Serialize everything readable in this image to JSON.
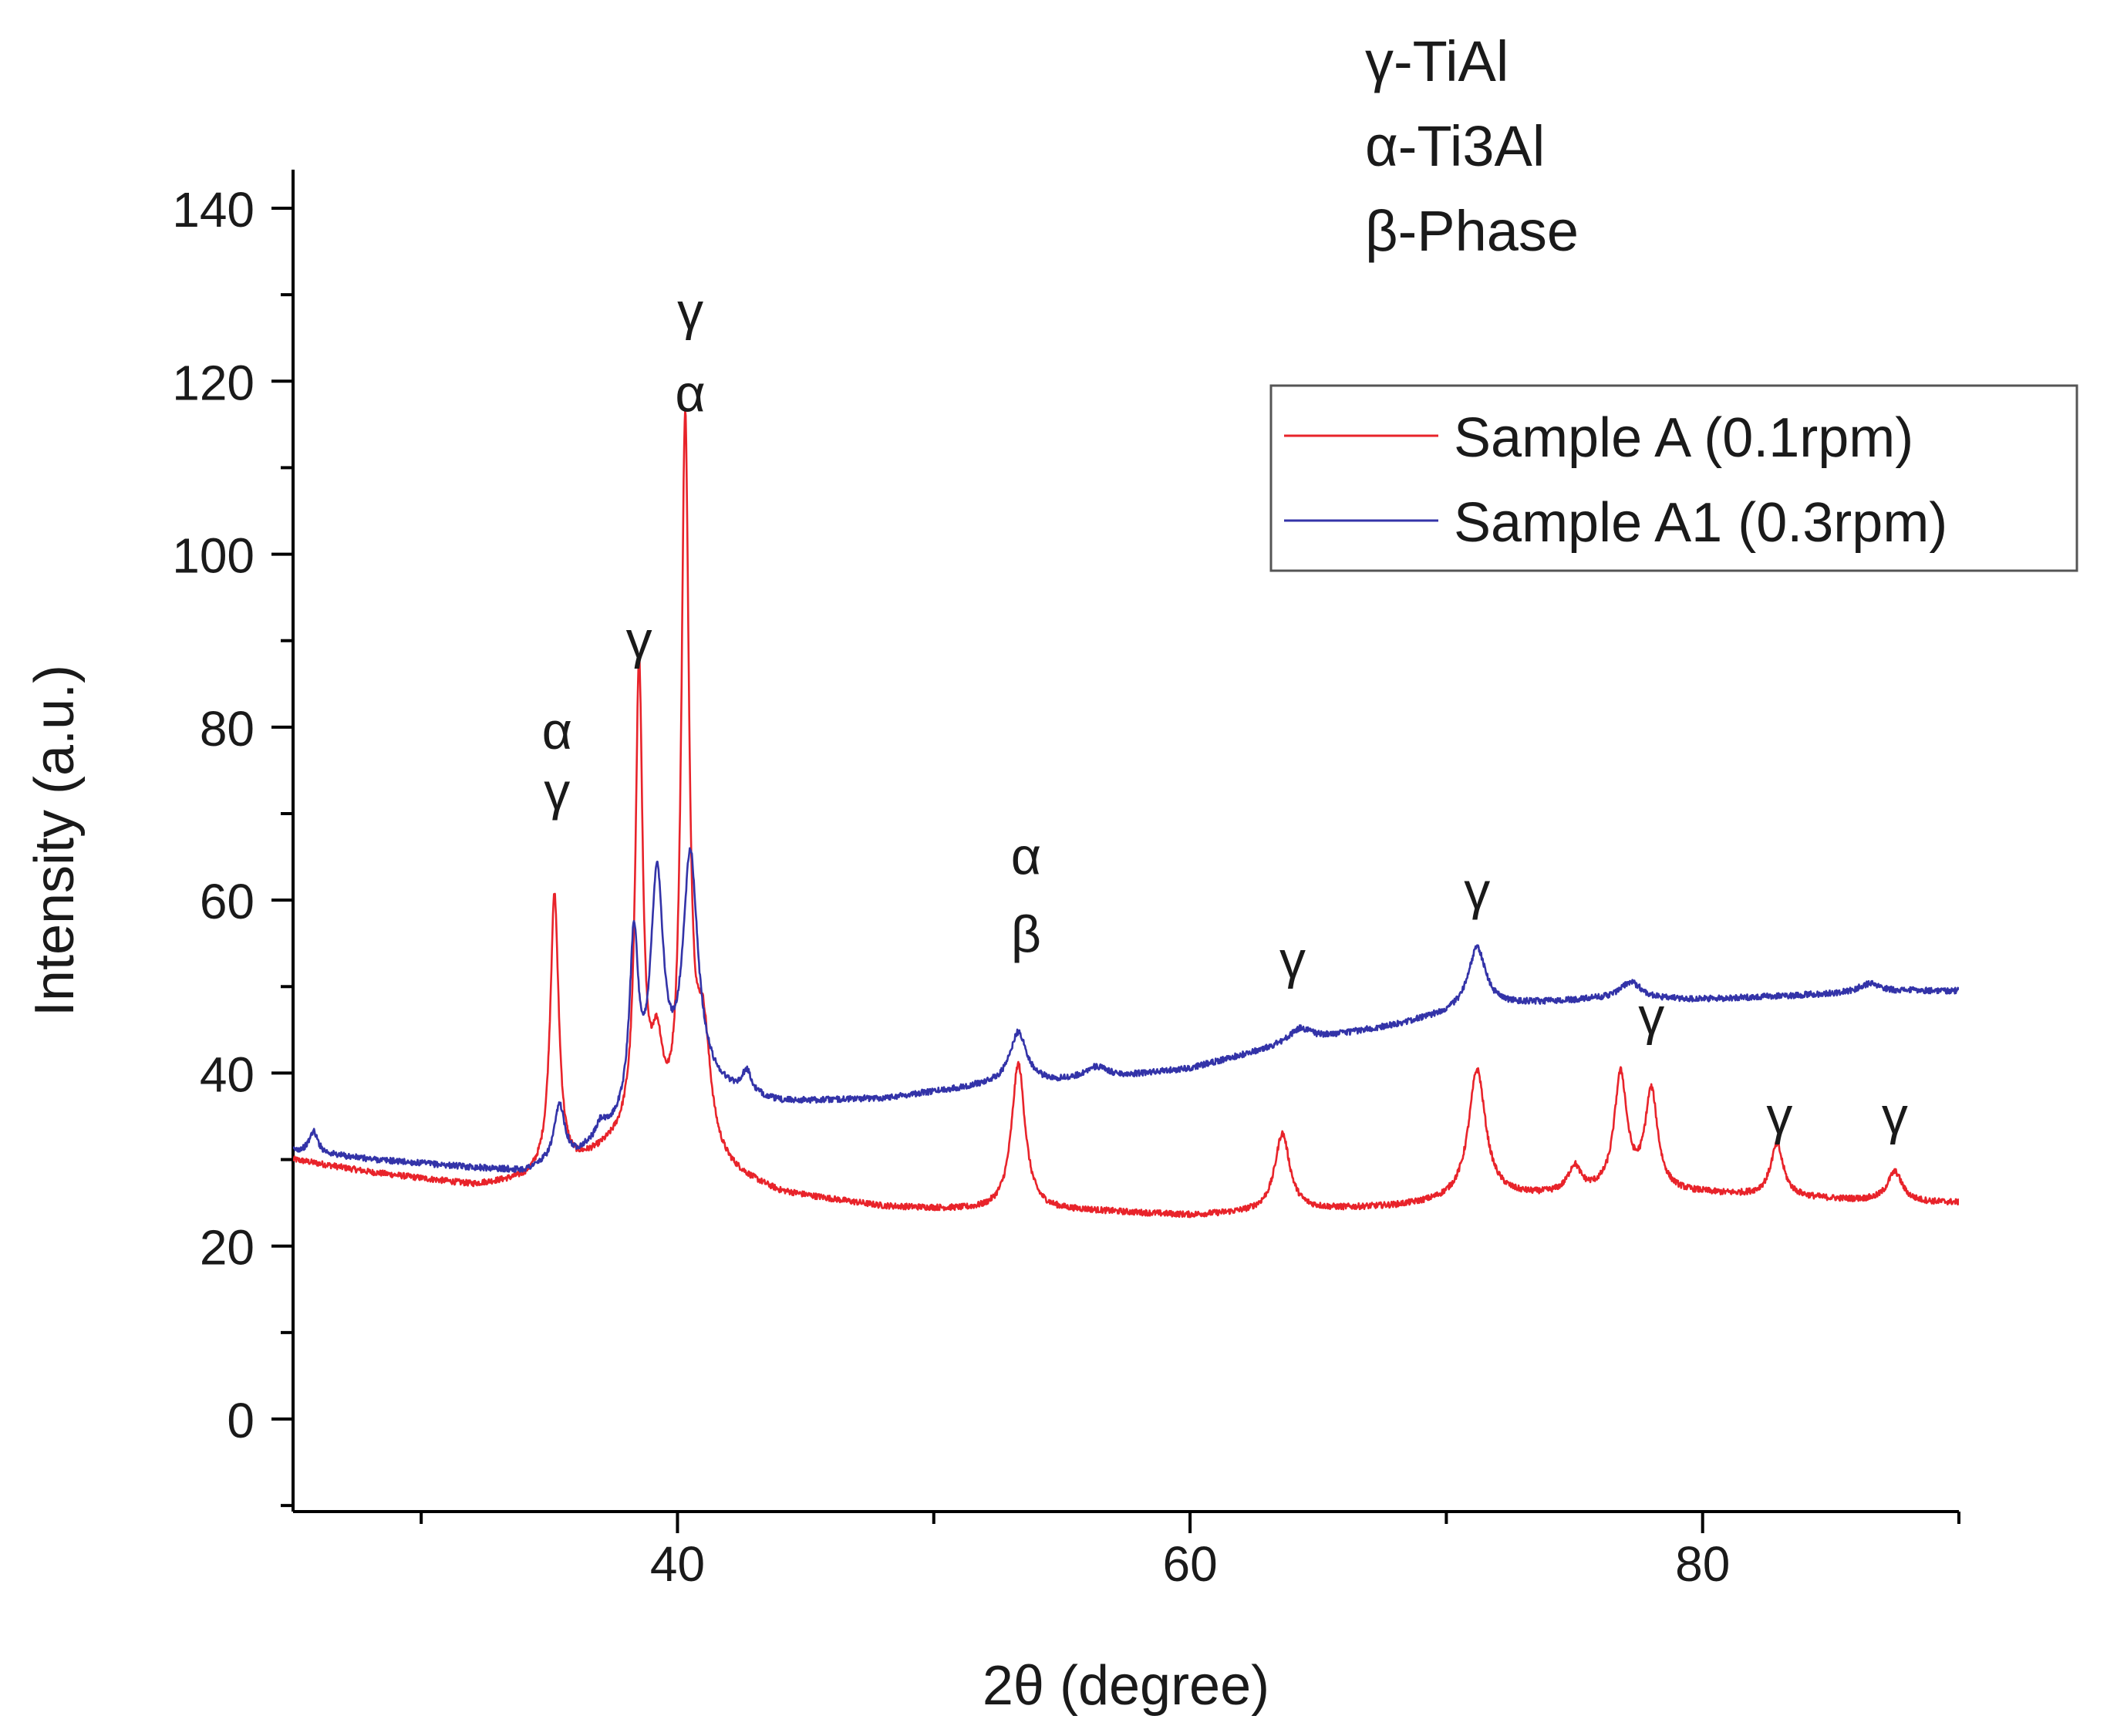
{
  "chart_data": {
    "type": "line",
    "title": "",
    "xlabel": "2θ (degree)",
    "ylabel": "Intensity (a.u.)",
    "xlim": [
      25,
      90
    ],
    "ylim": [
      -10,
      145
    ],
    "x_ticks": [
      40,
      60,
      80
    ],
    "y_ticks": [
      0,
      20,
      40,
      60,
      80,
      100,
      120,
      140
    ],
    "phase_key": [
      "γ-TiAl",
      "α-Ti3Al",
      "β-Phase"
    ],
    "legend_position": "upper-right",
    "series": [
      {
        "name": "Sample A (0.1rpm)",
        "color": "#e8232a",
        "baseline": [
          [
            25,
            30
          ],
          [
            28,
            28.5
          ],
          [
            32,
            27
          ],
          [
            34,
            27.5
          ],
          [
            36,
            29
          ],
          [
            38,
            32
          ],
          [
            41,
            29
          ],
          [
            44,
            26
          ],
          [
            48,
            24.5
          ],
          [
            52,
            24
          ],
          [
            56,
            24
          ],
          [
            60,
            23.5
          ],
          [
            64,
            24
          ],
          [
            68,
            24.5
          ],
          [
            72,
            25.5
          ],
          [
            76,
            26
          ],
          [
            80,
            26
          ],
          [
            84,
            25.5
          ],
          [
            88,
            25
          ],
          [
            90,
            25
          ]
        ],
        "peaks": [
          [
            35.2,
            32,
            0.2
          ],
          [
            38.5,
            54,
            0.17
          ],
          [
            39.2,
            10,
            0.3
          ],
          [
            40.3,
            83,
            0.18
          ],
          [
            41.0,
            14,
            0.35
          ],
          [
            53.3,
            17,
            0.32
          ],
          [
            63.6,
            9,
            0.35
          ],
          [
            71.2,
            15,
            0.4
          ],
          [
            75.0,
            3,
            0.3
          ],
          [
            76.8,
            13.5,
            0.3
          ],
          [
            78.0,
            11.5,
            0.3
          ],
          [
            82.9,
            6,
            0.3
          ],
          [
            87.5,
            3.5,
            0.35
          ]
        ]
      },
      {
        "name": "Sample A1 (0.3rpm)",
        "color": "#3333a8",
        "baseline": [
          [
            25,
            31
          ],
          [
            28,
            30
          ],
          [
            32,
            29
          ],
          [
            34,
            28.5
          ],
          [
            36,
            30
          ],
          [
            38,
            34
          ],
          [
            41,
            38
          ],
          [
            44,
            36.5
          ],
          [
            48,
            37
          ],
          [
            52,
            38.5
          ],
          [
            56,
            39
          ],
          [
            60,
            40.5
          ],
          [
            64,
            43.5
          ],
          [
            68,
            45.5
          ],
          [
            71,
            47.5
          ],
          [
            73,
            48
          ],
          [
            76,
            48.5
          ],
          [
            80,
            48.5
          ],
          [
            84,
            49
          ],
          [
            88,
            49.5
          ],
          [
            90,
            49.5
          ]
        ],
        "peaks": [
          [
            25.8,
            2.5,
            0.2
          ],
          [
            35.4,
            6.5,
            0.25
          ],
          [
            37.0,
            1.5,
            0.2
          ],
          [
            38.3,
            20,
            0.2
          ],
          [
            39.2,
            26,
            0.3
          ],
          [
            40.5,
            27,
            0.35
          ],
          [
            42.7,
            2.5,
            0.2
          ],
          [
            53.3,
            6,
            0.4
          ],
          [
            56.3,
            1.5,
            0.6
          ],
          [
            64.3,
            1.5,
            0.5
          ],
          [
            71.2,
            7,
            0.4
          ],
          [
            77.2,
            2,
            0.5
          ],
          [
            86.5,
            1,
            0.5
          ]
        ]
      }
    ],
    "annotations": [
      {
        "text": "α",
        "x": 35.3,
        "y": 77.5
      },
      {
        "text": "γ",
        "x": 35.3,
        "y": 70.5
      },
      {
        "text": "γ",
        "x": 38.5,
        "y": 88
      },
      {
        "text": "γ",
        "x": 40.5,
        "y": 126
      },
      {
        "text": "α",
        "x": 40.5,
        "y": 116.5
      },
      {
        "text": "α",
        "x": 53.6,
        "y": 63
      },
      {
        "text": "β",
        "x": 53.6,
        "y": 54
      },
      {
        "text": "γ",
        "x": 64.0,
        "y": 51
      },
      {
        "text": "γ",
        "x": 71.2,
        "y": 59
      },
      {
        "text": "γ",
        "x": 78.0,
        "y": 44.5
      },
      {
        "text": "γ",
        "x": 83.0,
        "y": 33
      },
      {
        "text": "γ",
        "x": 87.5,
        "y": 33
      }
    ]
  }
}
